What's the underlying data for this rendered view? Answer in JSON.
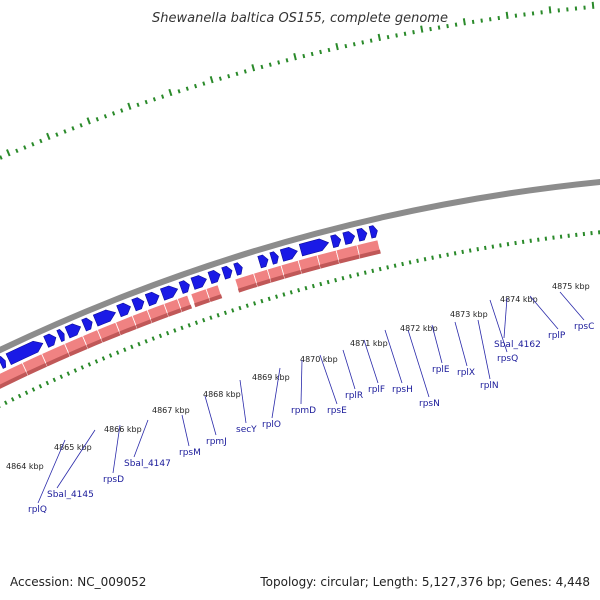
{
  "title": "Shewanella baltica OS155, complete genome",
  "footer": {
    "accession": "Accession: NC_009052",
    "summary": "Topology: circular; Length: 5,127,376 bp; Genes: 4,448"
  },
  "colors": {
    "backbone": "#8c8c8c",
    "forward_gene": "#1a1ae6",
    "reverse_gene": "#f08282",
    "reverse_gene_dark": "#c05858",
    "orange_gene": "#ff8c00",
    "green_gene": "#99ee22",
    "ticks": "#2a8a2a",
    "label": "#1a1a9a",
    "label_line": "#2a2aaa"
  },
  "kbp_labels": [
    "4864 kbp",
    "4865 kbp",
    "4866 kbp",
    "4867 kbp",
    "4868 kbp",
    "4869 kbp",
    "4870 kbp",
    "4871 kbp",
    "4872 kbp",
    "4873 kbp",
    "4874 kbp",
    "4875 kbp"
  ],
  "gene_labels": [
    "rplQ",
    "Sbal_4145",
    "rpsD",
    "Sbal_4147",
    "rpsM",
    "rpmJ",
    "secY",
    "rplO",
    "rpmD",
    "rpsE",
    "rplR",
    "rplF",
    "rpsH",
    "rpsN",
    "rplE",
    "rplX",
    "rplN",
    "rpsQ",
    "Sbal_4162",
    "rplP",
    "rpsC"
  ]
}
